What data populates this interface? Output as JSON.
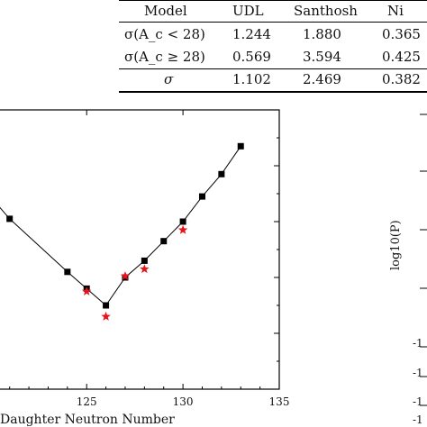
{
  "table": {
    "headers": [
      "Model",
      "UDL",
      "Santhosh",
      "Ni"
    ],
    "rows": [
      {
        "label": "σ(A_c < 28)",
        "udl": "1.244",
        "santhosh": "1.880",
        "ni": "0.365"
      },
      {
        "label": "σ(A_c ≥ 28)",
        "udl": "0.569",
        "santhosh": "3.594",
        "ni": "0.425"
      },
      {
        "label": "σ",
        "udl": "1.102",
        "santhosh": "2.469",
        "ni": "0.382"
      }
    ]
  },
  "chart_data": {
    "type": "scatter",
    "xlabel": "Daughter Neutron Number",
    "xlim": [
      120.5,
      135
    ],
    "xticks": [
      125,
      130,
      135
    ],
    "xtick_labels_visible": [
      "125",
      "130",
      "135"
    ],
    "ylim": [
      0,
      10
    ],
    "series": [
      {
        "marker": "square",
        "color": "#000000",
        "connected": true,
        "x": [
          120,
          121,
          124,
          125,
          126,
          127,
          128,
          129,
          130,
          131,
          132,
          133
        ],
        "y": [
          6.9,
          6.1,
          4.2,
          3.6,
          3.0,
          4.0,
          4.6,
          5.3,
          6.0,
          6.9,
          7.7,
          8.7
        ]
      },
      {
        "marker": "star",
        "color": "#e8141b",
        "connected": false,
        "x": [
          125,
          126,
          127,
          128,
          130
        ],
        "y": [
          3.5,
          2.6,
          4.05,
          4.3,
          5.7
        ]
      }
    ]
  },
  "right_axis": {
    "ylabel": "log10(P)",
    "partial_tick_labels": [
      "-1",
      "-1",
      "-1",
      "-1",
      "-1"
    ]
  }
}
